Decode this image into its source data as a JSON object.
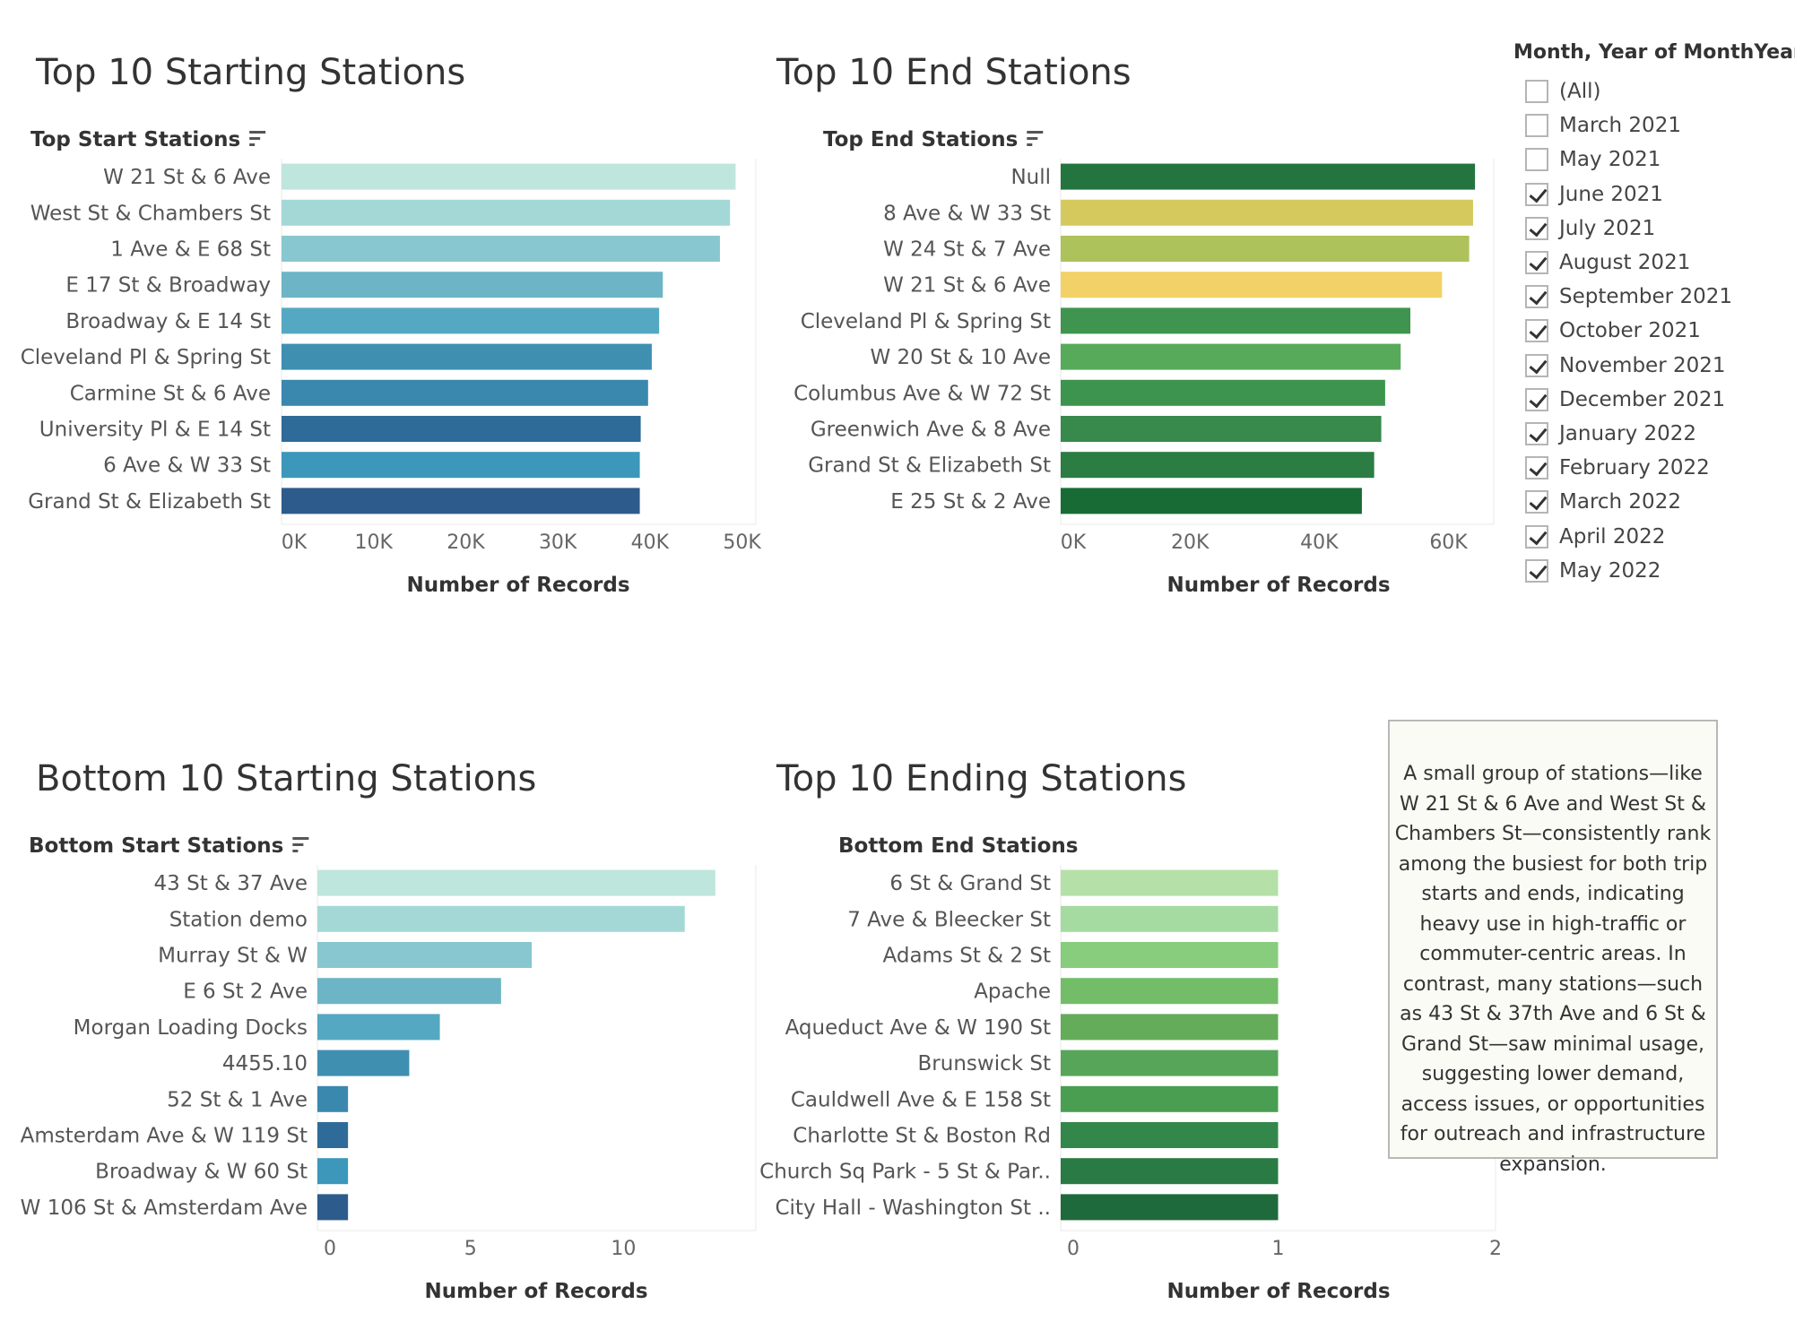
{
  "colors": {
    "teal_scale": [
      "#bfe6dc",
      "#a3d8d6",
      "#88c7cf",
      "#6db5c6",
      "#55a8c1",
      "#3f8fb1",
      "#3a88ae",
      "#2e6b98",
      "#3c97ba",
      "#2d5b8c"
    ],
    "green_scale": [
      "#23743f",
      "#d5c95d",
      "#adc25a",
      "#f2d266",
      "#3f9550",
      "#57aa59",
      "#3c944f",
      "#378a4b",
      "#2c7d43",
      "#196b36"
    ],
    "bottom_end_scale": [
      "#b5e0a7",
      "#a5dba0",
      "#88cc7d",
      "#73bd68",
      "#64ac5a",
      "#57a559",
      "#4a9e51",
      "#34874a",
      "#2a7a45",
      "#1f6a3d"
    ]
  },
  "charts": {
    "top_start": {
      "title": "Top 10 Starting Stations",
      "header": "Top Start Stations",
      "sort_icon": "sort-descending-icon",
      "xlabel": "Number of Records",
      "ticks": [
        "0K",
        "10K",
        "20K",
        "30K",
        "40K",
        "50K"
      ]
    },
    "top_end": {
      "title": "Top 10 End Stations",
      "header": "Top End Stations",
      "sort_icon": "sort-descending-icon",
      "xlabel": "Number of Records",
      "ticks": [
        "0K",
        "20K",
        "40K",
        "60K"
      ]
    },
    "bottom_start": {
      "title": "Bottom 10 Starting Stations",
      "header": "Bottom Start Stations",
      "sort_icon": "sort-descending-icon",
      "xlabel": "Number of Records",
      "ticks": [
        "0",
        "5",
        "10"
      ]
    },
    "bottom_end": {
      "title": "Top 10 Ending Stations",
      "header": "Bottom End Stations",
      "xlabel": "Number of Records",
      "ticks": [
        "0",
        "1",
        "2"
      ]
    }
  },
  "filter": {
    "title": "Month, Year of MonthYear",
    "items": [
      {
        "label": "(All)",
        "checked": false
      },
      {
        "label": "March 2021",
        "checked": false
      },
      {
        "label": "May 2021",
        "checked": false
      },
      {
        "label": "June 2021",
        "checked": true
      },
      {
        "label": "July 2021",
        "checked": true
      },
      {
        "label": "August 2021",
        "checked": true
      },
      {
        "label": "September 2021",
        "checked": true
      },
      {
        "label": "October 2021",
        "checked": true
      },
      {
        "label": "November 2021",
        "checked": true
      },
      {
        "label": "December 2021",
        "checked": true
      },
      {
        "label": "January 2022",
        "checked": true
      },
      {
        "label": "February 2022",
        "checked": true
      },
      {
        "label": "March 2022",
        "checked": true
      },
      {
        "label": "April 2022",
        "checked": true
      },
      {
        "label": "May 2022",
        "checked": true
      }
    ]
  },
  "note": {
    "text": "A small group of stations—like W 21 St & 6 Ave and West St & Chambers St—consistently rank among the busiest for both trip starts and ends, indicating heavy use in high-traffic or commuter-centric areas. In contrast, many stations—such as 43 St & 37th Ave and 6 St & Grand St—saw minimal usage, suggesting lower demand, access issues, or opportunities for outreach and infrastructure expansion."
  },
  "chart_data": [
    {
      "type": "bar",
      "orientation": "horizontal",
      "title": "Top 10 Starting Stations",
      "ylabel": "Top Start Stations",
      "xlabel": "Number of Records",
      "categories": [
        "W 21 St & 6 Ave",
        "West St & Chambers St",
        "1 Ave & E 68 St",
        "E 17 St & Broadway",
        "Broadway & E 14 St",
        "Cleveland Pl & Spring St",
        "Carmine St & 6 Ave",
        "University Pl & E 14 St",
        "6 Ave & W 33 St",
        "Grand St & Elizabeth St"
      ],
      "values": [
        49300,
        48700,
        47600,
        41400,
        41000,
        40200,
        39800,
        39000,
        38900,
        38900
      ],
      "xlim": [
        0,
        51500
      ]
    },
    {
      "type": "bar",
      "orientation": "horizontal",
      "title": "Top 10 End Stations",
      "ylabel": "Top End Stations",
      "xlabel": "Number of Records",
      "categories": [
        "Null",
        "8 Ave & W 33 St",
        "W 24 St & 7 Ave",
        "W 21 St & 6 Ave",
        "Cleveland Pl & Spring St",
        "W 20 St & 10 Ave",
        "Columbus Ave & W 72 St",
        "Greenwich Ave & 8 Ave",
        "Grand St & Elizabeth St",
        "E 25 St & 2 Ave"
      ],
      "values": [
        64100,
        63800,
        63200,
        59000,
        54100,
        52600,
        50200,
        49600,
        48500,
        46600
      ],
      "xlim": [
        0,
        67000
      ]
    },
    {
      "type": "bar",
      "orientation": "horizontal",
      "title": "Bottom 10 Starting Stations",
      "ylabel": "Bottom Start Stations",
      "xlabel": "Number of Records",
      "categories": [
        "43 St & 37 Ave",
        "Station demo",
        "Murray St           & W",
        "E 6 St 2 Ave",
        "Morgan Loading Docks",
        "4455.10",
        "52 St & 1 Ave",
        "Amsterdam Ave & W 119 St",
        "Broadway & W 60 St",
        "W 106 St & Amsterdam Ave"
      ],
      "values": [
        13,
        12,
        7,
        6,
        4,
        3,
        1,
        1,
        1,
        1
      ],
      "xlim": [
        0,
        14
      ]
    },
    {
      "type": "bar",
      "orientation": "horizontal",
      "title": "Top 10 Ending Stations",
      "ylabel": "Bottom End Stations",
      "xlabel": "Number of Records",
      "categories": [
        "6 St & Grand St",
        "7 Ave & Bleecker St",
        "Adams St & 2 St",
        "Apache",
        "Aqueduct Ave & W 190 St",
        "Brunswick St",
        "Cauldwell Ave & E 158 St",
        "Charlotte St & Boston Rd",
        "Church Sq Park - 5 St & Par..",
        "City Hall - Washington St .."
      ],
      "values": [
        1,
        1,
        1,
        1,
        1,
        1,
        1,
        1,
        1,
        1
      ],
      "xlim": [
        0,
        2
      ]
    }
  ]
}
